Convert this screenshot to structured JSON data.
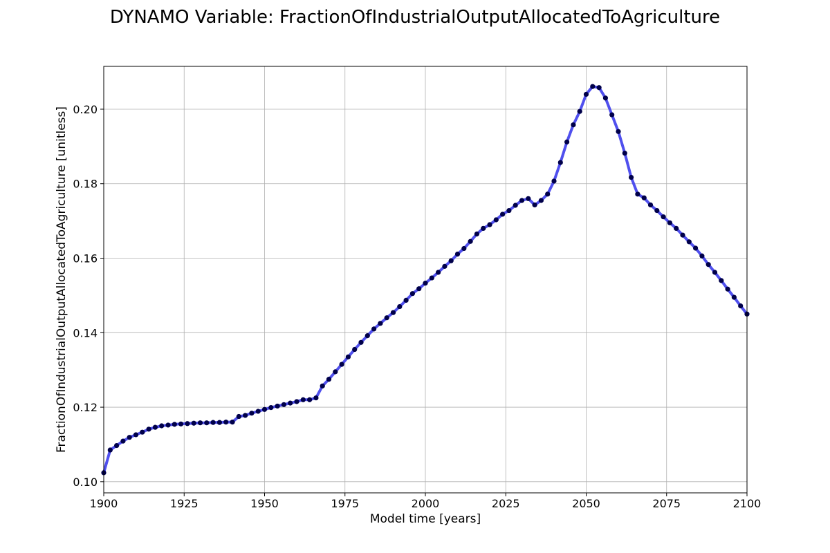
{
  "chart_data": {
    "type": "line",
    "title": "DYNAMO Variable: FractionOfIndustrialOutputAllocatedToAgriculture",
    "xlabel": "Model time [years]",
    "ylabel": "FractionOfIndustrialOutputAllocatedToAgriculture [unitless]",
    "xlim": [
      1900,
      2100
    ],
    "ylim": [
      0.097,
      0.2115
    ],
    "x_ticks": [
      1900,
      1925,
      1950,
      1975,
      2000,
      2025,
      2050,
      2075,
      2100
    ],
    "y_ticks": [
      0.1,
      0.12,
      0.14,
      0.16,
      0.18,
      0.2
    ],
    "x_tick_labels": [
      "1900",
      "1925",
      "1950",
      "1975",
      "2000",
      "2025",
      "2050",
      "2075",
      "2100"
    ],
    "y_tick_labels": [
      "0.10",
      "0.12",
      "0.14",
      "0.16",
      "0.18",
      "0.20"
    ],
    "grid": true,
    "line_color": "#5050ee",
    "marker_color": "#00004a",
    "series": [
      {
        "x": [
          1900,
          1902,
          1904,
          1906,
          1908,
          1910,
          1912,
          1914,
          1916,
          1918,
          1920,
          1922,
          1924,
          1926,
          1928,
          1930,
          1932,
          1934,
          1936,
          1938,
          1940,
          1942,
          1944,
          1946,
          1948,
          1950,
          1952,
          1954,
          1956,
          1958,
          1960,
          1962,
          1964,
          1966,
          1968,
          1970,
          1972,
          1974,
          1976,
          1978,
          1980,
          1982,
          1984,
          1986,
          1988,
          1990,
          1992,
          1994,
          1996,
          1998,
          2000,
          2002,
          2004,
          2006,
          2008,
          2010,
          2012,
          2014,
          2016,
          2018,
          2020,
          2022,
          2024,
          2026,
          2028,
          2030,
          2032,
          2034,
          2036,
          2038,
          2040,
          2042,
          2044,
          2046,
          2048,
          2050,
          2052,
          2054,
          2056,
          2058,
          2060,
          2062,
          2064,
          2066,
          2068,
          2070,
          2072,
          2074,
          2076,
          2078,
          2080,
          2082,
          2084,
          2086,
          2088,
          2090,
          2092,
          2094,
          2096,
          2098,
          2100
        ],
        "values": [
          0.1024,
          0.1085,
          0.1097,
          0.1109,
          0.1119,
          0.1126,
          0.1133,
          0.1141,
          0.1146,
          0.115,
          0.1152,
          0.1154,
          0.1155,
          0.1156,
          0.1157,
          0.1158,
          0.1158,
          0.1159,
          0.1159,
          0.116,
          0.116,
          0.1175,
          0.1178,
          0.1184,
          0.1189,
          0.1194,
          0.1199,
          0.1203,
          0.1207,
          0.1211,
          0.1215,
          0.122,
          0.122,
          0.1225,
          0.1257,
          0.1275,
          0.1295,
          0.1315,
          0.1335,
          0.1355,
          0.1374,
          0.1392,
          0.141,
          0.1425,
          0.144,
          0.1454,
          0.147,
          0.1487,
          0.1505,
          0.1518,
          0.1533,
          0.1547,
          0.1562,
          0.1578,
          0.1593,
          0.1611,
          0.1626,
          0.1645,
          0.1665,
          0.168,
          0.169,
          0.1703,
          0.1718,
          0.1728,
          0.1742,
          0.1755,
          0.176,
          0.1743,
          0.1755,
          0.1772,
          0.1807,
          0.1857,
          0.1912,
          0.1958,
          0.1994,
          0.204,
          0.2061,
          0.2058,
          0.203,
          0.1985,
          0.194,
          0.1882,
          0.1817,
          0.1772,
          0.1762,
          0.1743,
          0.1728,
          0.1711,
          0.1695,
          0.168,
          0.1662,
          0.1644,
          0.1627,
          0.1606,
          0.1583,
          0.1562,
          0.154,
          0.1517,
          0.1495,
          0.1472,
          0.145
        ]
      }
    ]
  }
}
